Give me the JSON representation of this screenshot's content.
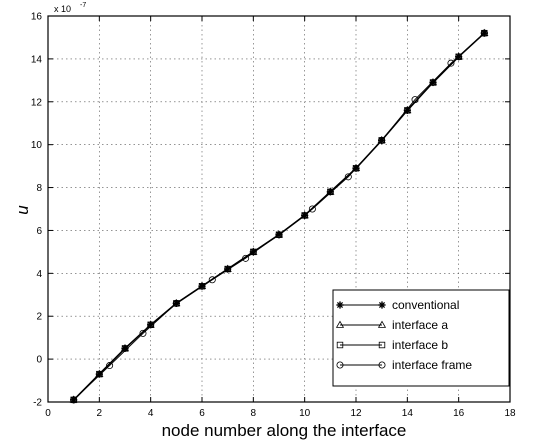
{
  "chart_data": {
    "type": "line",
    "title": "",
    "xlabel": "node number along the interface",
    "ylabel": "u",
    "y_exponent_label": "x 10",
    "y_exponent": "-7",
    "xlim": [
      0,
      18
    ],
    "ylim": [
      -2,
      16
    ],
    "xticks": [
      0,
      2,
      4,
      6,
      8,
      10,
      12,
      14,
      16,
      18
    ],
    "yticks": [
      -2,
      0,
      2,
      4,
      6,
      8,
      10,
      12,
      14,
      16
    ],
    "grid": true,
    "legend_position": "bottom-right",
    "series": [
      {
        "name": "conventional",
        "marker": "star",
        "x": [
          1,
          2,
          3,
          4,
          5,
          6,
          7,
          8,
          9,
          10,
          11,
          12,
          13,
          14,
          15,
          16,
          17
        ],
        "y": [
          -1.9,
          -0.7,
          0.5,
          1.6,
          2.6,
          3.4,
          4.2,
          5.0,
          5.8,
          6.7,
          7.8,
          8.9,
          10.2,
          11.6,
          12.9,
          14.1,
          15.2
        ]
      },
      {
        "name": "interface a",
        "marker": "triangle",
        "x": [
          1,
          2,
          3,
          4,
          5,
          6,
          7,
          8,
          9,
          10,
          11,
          12,
          13,
          14,
          15,
          16,
          17
        ],
        "y": [
          -1.9,
          -0.7,
          0.5,
          1.6,
          2.6,
          3.4,
          4.2,
          5.0,
          5.8,
          6.7,
          7.8,
          8.9,
          10.2,
          11.6,
          12.9,
          14.1,
          15.2
        ]
      },
      {
        "name": "interface b",
        "marker": "square",
        "x": [
          1,
          2,
          3,
          4,
          5,
          6,
          7,
          8,
          9,
          10,
          11,
          12,
          13,
          14,
          15,
          16,
          17
        ],
        "y": [
          -1.9,
          -0.7,
          0.5,
          1.6,
          2.6,
          3.4,
          4.2,
          5.0,
          5.8,
          6.7,
          7.8,
          8.9,
          10.2,
          11.6,
          12.9,
          14.1,
          15.2
        ]
      },
      {
        "name": "interface frame",
        "marker": "circle",
        "x": [
          1,
          2.4,
          3.7,
          5,
          6.4,
          7.7,
          9,
          10.3,
          11.7,
          13,
          14.3,
          15.7,
          17
        ],
        "y": [
          -1.9,
          -0.3,
          1.2,
          2.6,
          3.7,
          4.7,
          5.8,
          7.0,
          8.5,
          10.2,
          12.1,
          13.8,
          15.2
        ]
      }
    ]
  }
}
